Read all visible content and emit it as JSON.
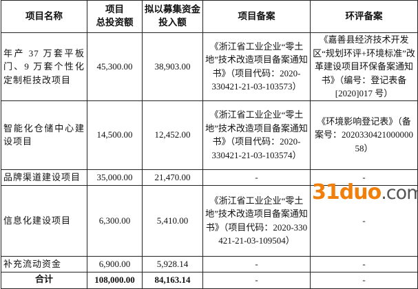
{
  "headers": [
    "项目名称",
    "项目\n总投资额",
    "拟以募集资金\n投入额",
    "项目备案",
    "环评备案"
  ],
  "rows": [
    {
      "name": "年产 37 万套平板门、9 万套个性化定制柜技改项目",
      "total": "45,300.00",
      "raise": "38,903.00",
      "filing": "《浙江省工业企业“零土地”技术改造项目备案通知书》（项目代码：2020-330421-21-03-103573）",
      "env": "《嘉善县经济技术开发区“规划环评+环境标准”改革建设项目环保备案通知书》（编号：登记表备[2020]017 号）"
    },
    {
      "name": "智能化仓储中心建设项目",
      "total": "14,500.00",
      "raise": "12,452.00",
      "filing": "《浙江省工业企业“零土地”技术改造项目备案通知书》（项目代码：2020-330421-21-03-103574）",
      "env": "《环境影响登记表》（备案号：202033042100000058）"
    },
    {
      "name": "品牌渠道建设项目",
      "total": "35,000.00",
      "raise": "21,470.00",
      "filing": "-",
      "env": "-"
    },
    {
      "name": "信息化建设项目",
      "total": "6,300.00",
      "raise": "5,410.00",
      "filing": "《浙江省工业企业“零土地”技术改造项目备案通知书》（项目代码：2020-330421-21-03-109504）",
      "env": "-"
    },
    {
      "name": "补充流动资金",
      "total": "6,900.00",
      "raise": "5,928.14",
      "filing": "-",
      "env": "-"
    }
  ],
  "total_row": {
    "name": "合计",
    "total": "108,000.00",
    "raise": "84,163.14",
    "filing": "-",
    "env": "-"
  },
  "watermark": {
    "text_accent": "31duo",
    "text_rest": ".com",
    "accent_color": "#f07f0c"
  }
}
